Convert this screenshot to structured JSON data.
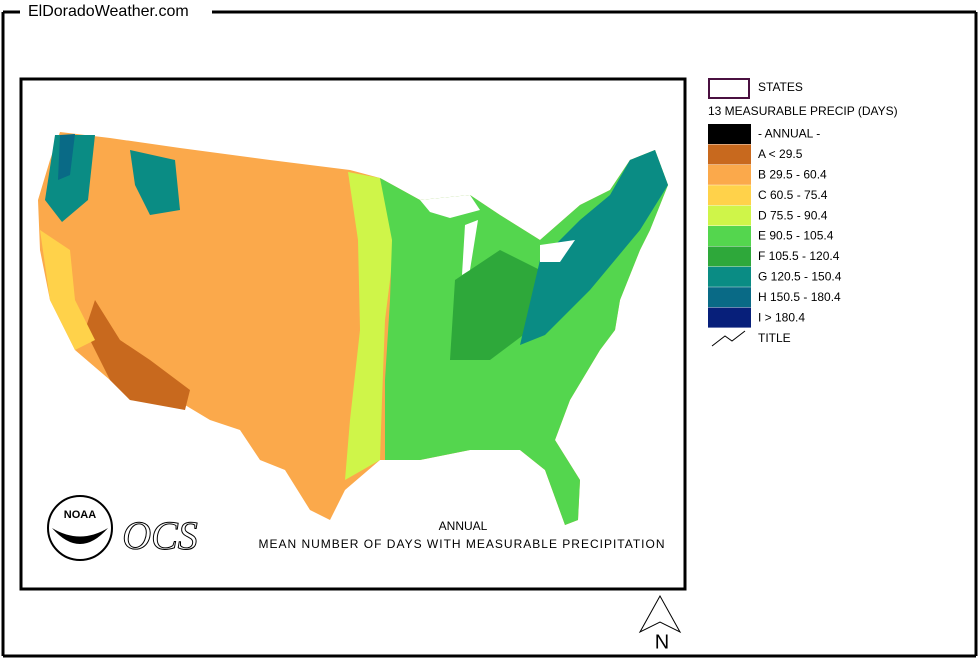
{
  "header": {
    "title": "ElDoradoWeather.com"
  },
  "legend": {
    "states": "STATES",
    "heading": "13 MEASURABLE PRECIP (DAYS)",
    "items": [
      {
        "label": "- ANNUAL -",
        "color": "#000000"
      },
      {
        "label": "A < 29.5",
        "color": "#c8691e"
      },
      {
        "label": "B 29.5 - 60.4",
        "color": "#fba94b"
      },
      {
        "label": "C 60.5 - 75.4",
        "color": "#ffd24a"
      },
      {
        "label": "D 75.5 - 90.4",
        "color": "#cff549"
      },
      {
        "label": "E 90.5 - 105.4",
        "color": "#54d64e"
      },
      {
        "label": "F 105.5 - 120.4",
        "color": "#2ea83a"
      },
      {
        "label": "G 120.5 - 150.4",
        "color": "#0a8c84"
      },
      {
        "label": "H 150.5 - 180.4",
        "color": "#096a86"
      },
      {
        "label": "I > 180.4",
        "color": "#071f7a"
      }
    ],
    "title_item": "TITLE"
  },
  "map": {
    "logo": "NOAA",
    "logo_text": "OCS",
    "caption_line1": "ANNUAL",
    "caption_line2": "MEAN NUMBER OF DAYS WITH MEASURABLE PRECIPITATION"
  },
  "compass": "N"
}
